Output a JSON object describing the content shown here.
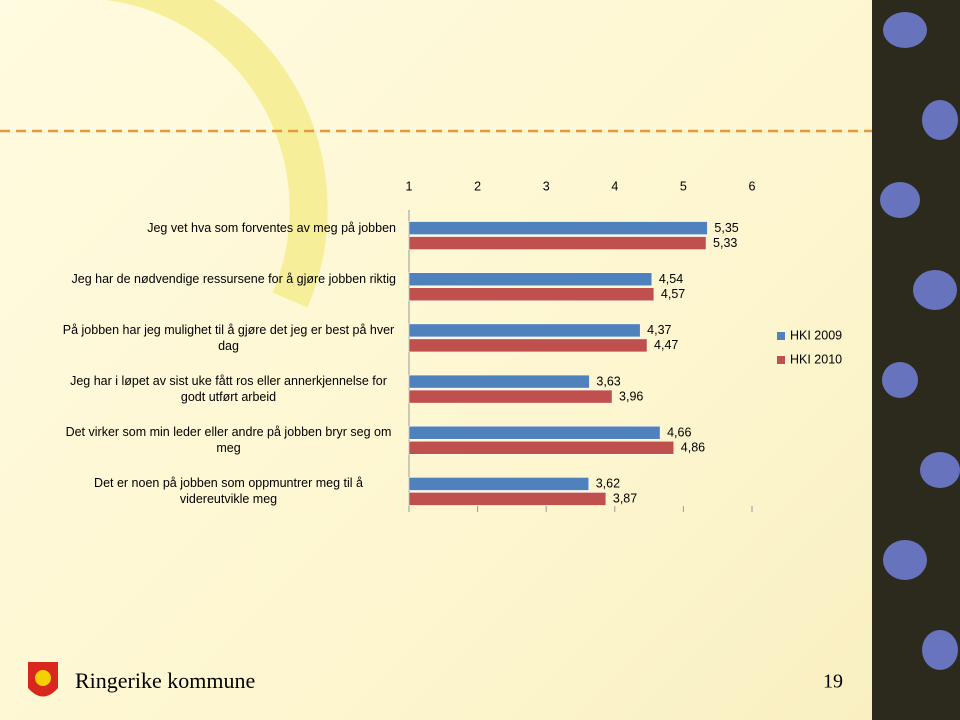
{
  "chart_data": {
    "type": "hbar",
    "categories": [
      "Jeg vet hva som forventes av meg på jobben",
      "Jeg har de nødvendige ressursene for å gjøre jobben riktig",
      "På jobben har jeg mulighet til å gjøre det jeg er best på hver dag",
      "Jeg har  i løpet av sist uke fått ros eller annerkjennelse for godt utført arbeid",
      "Det virker som min leder eller andre på jobben bryr seg om meg",
      "Det er noen på jobben som oppmuntrer meg til å videreutvikle meg"
    ],
    "series": [
      {
        "name": "HKI 2009",
        "color": "#4f81bd",
        "values": [
          5.35,
          4.54,
          4.37,
          3.63,
          4.66,
          3.62
        ],
        "value_labels": [
          "5,35",
          "4,54",
          "4,37",
          "3,63",
          "4,66",
          "3,62"
        ]
      },
      {
        "name": "HKI 2010",
        "color": "#c0504d",
        "values": [
          5.33,
          4.57,
          4.47,
          3.96,
          4.86,
          3.87
        ],
        "value_labels": [
          "5,33",
          "4,57",
          "4,47",
          "3,96",
          "4,86",
          "3,87"
        ]
      }
    ],
    "xlim": [
      1,
      6
    ],
    "xticks": [
      1,
      2,
      3,
      4,
      5,
      6
    ],
    "legend": "right"
  },
  "footer": {
    "organization": "Ringerike kommune",
    "page": "19"
  }
}
